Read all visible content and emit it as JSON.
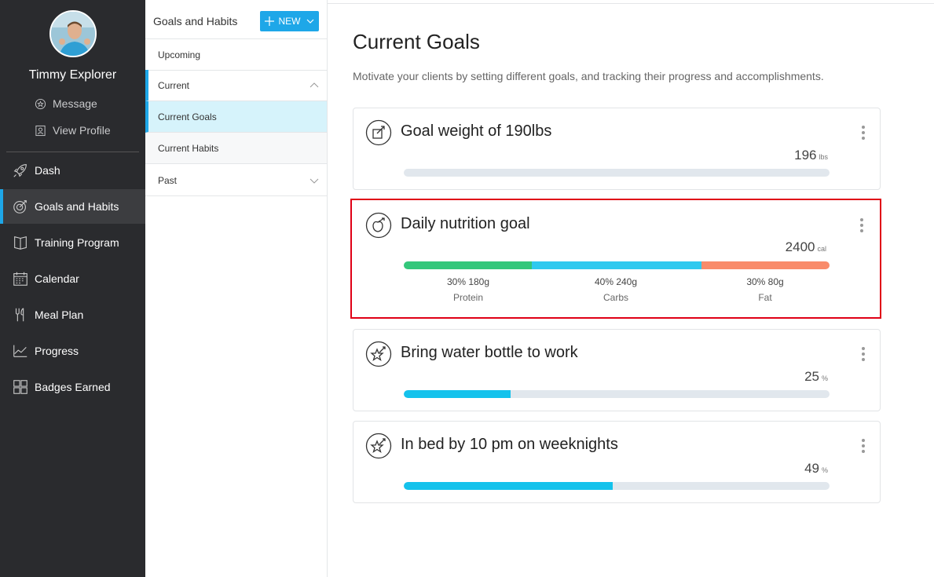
{
  "user": {
    "name": "Timmy Explorer",
    "links": [
      {
        "label": "Message",
        "icon": "message-icon"
      },
      {
        "label": "View Profile",
        "icon": "profile-icon"
      }
    ]
  },
  "nav": {
    "items": [
      {
        "label": "Dash",
        "icon": "rocket-icon"
      },
      {
        "label": "Goals and Habits",
        "icon": "target-icon",
        "active": true
      },
      {
        "label": "Training Program",
        "icon": "book-icon"
      },
      {
        "label": "Calendar",
        "icon": "calendar-icon"
      },
      {
        "label": "Meal Plan",
        "icon": "utensils-icon"
      },
      {
        "label": "Progress",
        "icon": "chart-icon"
      },
      {
        "label": "Badges Earned",
        "icon": "grid-icon"
      }
    ]
  },
  "panel": {
    "title": "Goals and Habits",
    "new_button": "NEW",
    "rows": {
      "upcoming": "Upcoming",
      "current": "Current",
      "current_goals": "Current Goals",
      "current_habits": "Current Habits",
      "past": "Past"
    }
  },
  "main": {
    "title": "Current Goals",
    "subtitle": "Motivate your clients by setting different goals, and tracking their progress and accomplishments."
  },
  "goals": [
    {
      "title": "Goal weight of 190lbs",
      "value": "196",
      "unit": "lbs",
      "progress": 0
    },
    {
      "title": "Daily nutrition goal",
      "value": "2400",
      "unit": "cal",
      "macros": [
        {
          "pct": "30% 180g",
          "name": "Protein",
          "share": 0.3,
          "color": "#34c77b"
        },
        {
          "pct": "40% 240g",
          "name": "Carbs",
          "share": 0.4,
          "color": "#2fc9ef"
        },
        {
          "pct": "30% 80g",
          "name": "Fat",
          "share": 0.3,
          "color": "#f98b6a"
        }
      ]
    },
    {
      "title": "Bring water bottle to work",
      "value": "25",
      "unit": "%",
      "progress": 0.25
    },
    {
      "title": "In bed by 10 pm on weeknights",
      "value": "49",
      "unit": "%",
      "progress": 0.49
    }
  ],
  "colors": {
    "accent": "#1ea7e8",
    "sidebar": "#2a2b2e",
    "highlight": "#e00016",
    "progress": "#14c2ec"
  }
}
